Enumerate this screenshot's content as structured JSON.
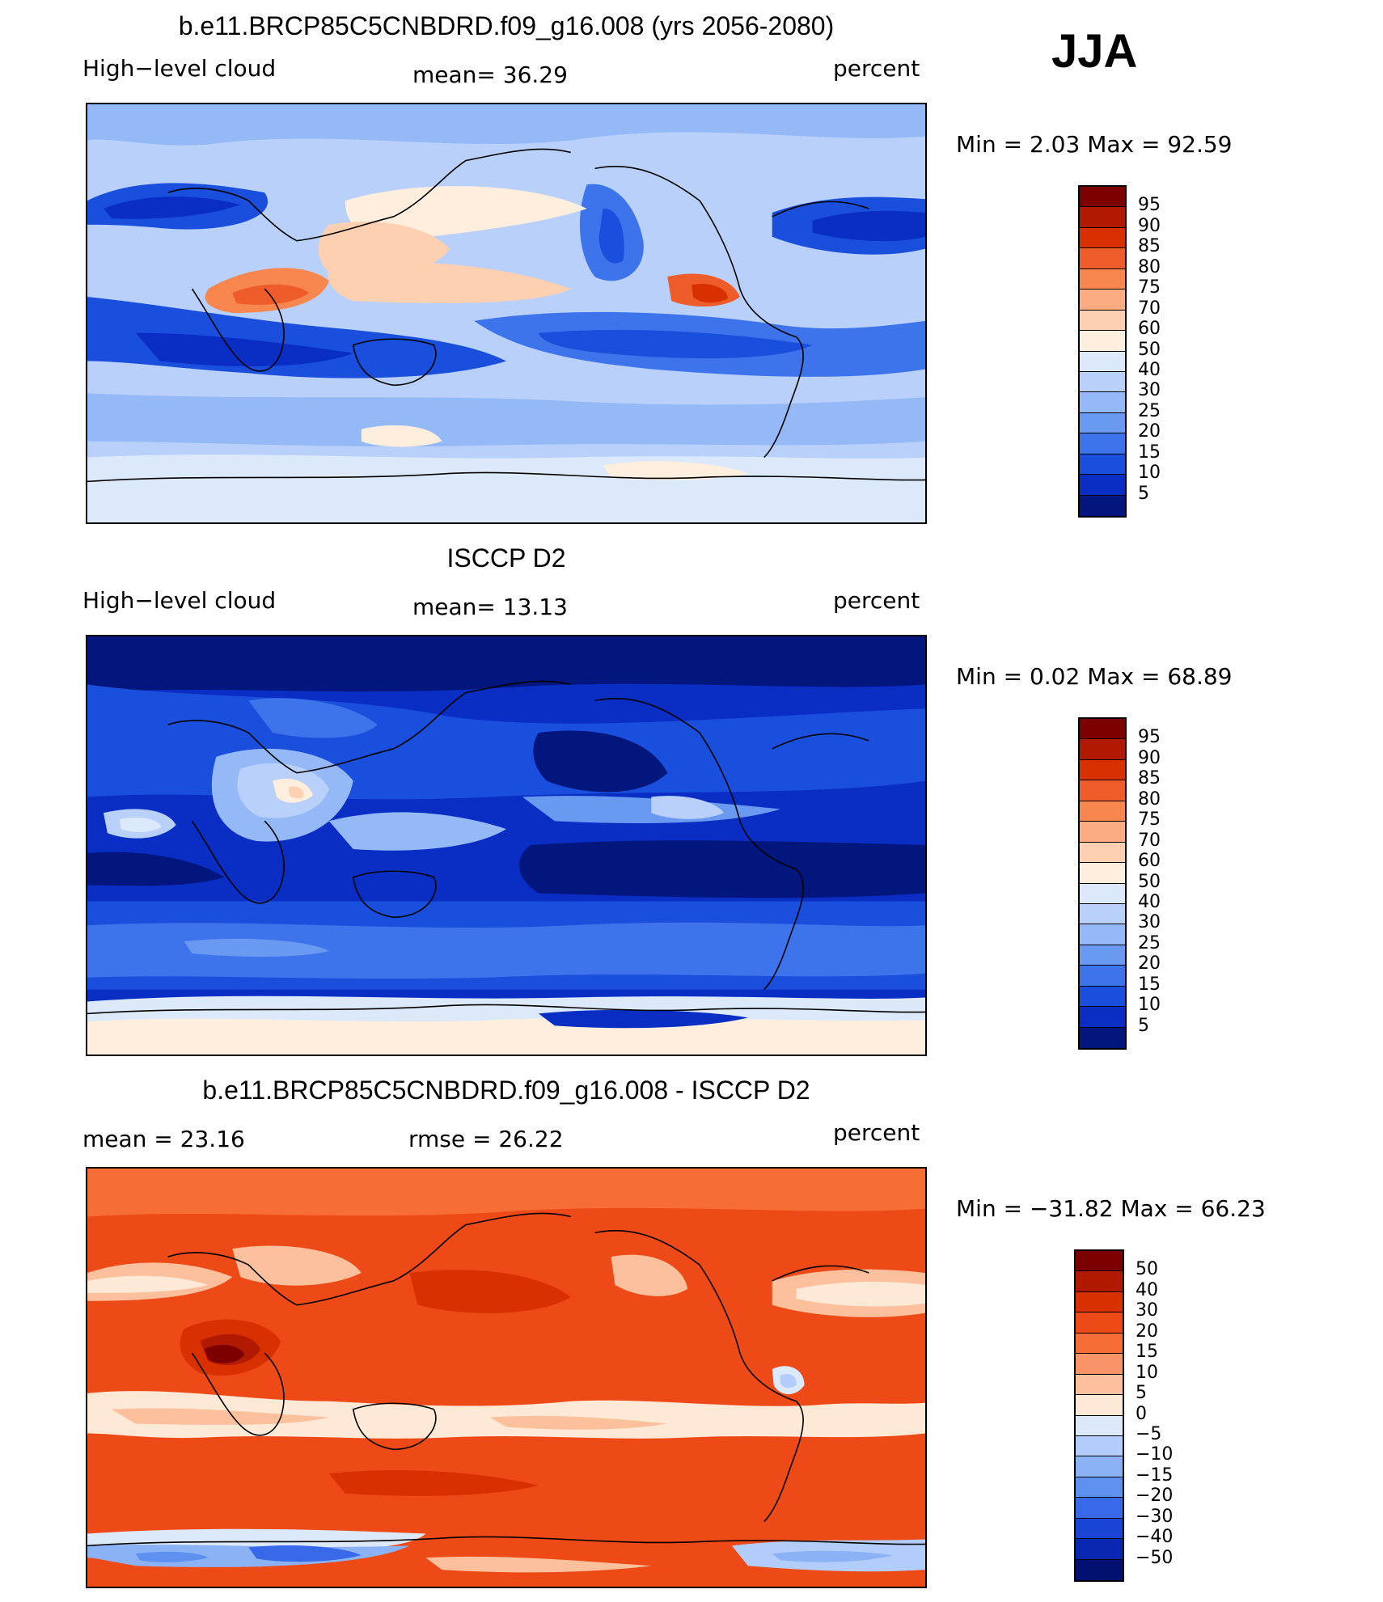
{
  "season": "JJA",
  "panels": [
    {
      "title": "b.e11.BRCP85C5CNBDRD.f09_g16.008 (yrs 2056-2080)",
      "left_label": "High−level cloud",
      "center_label": "mean=  36.29",
      "right_label": "percent",
      "minmax": "Min =    2.03  Max =   92.59",
      "levels": [
        "95",
        "90",
        "85",
        "80",
        "75",
        "70",
        "60",
        "50",
        "40",
        "30",
        "25",
        "20",
        "15",
        "10",
        "5"
      ],
      "colors": [
        "#7d0000",
        "#b21a00",
        "#d93000",
        "#ee5c2a",
        "#f8874f",
        "#fbac80",
        "#fdd0b2",
        "#fdeedd",
        "#dce9fb",
        "#b9d1fa",
        "#95b8f7",
        "#6a99f2",
        "#3e74eb",
        "#1a4fdd",
        "#0a2ec4",
        "#02167e"
      ]
    },
    {
      "title": "ISCCP D2",
      "left_label": "High−level cloud",
      "center_label": "mean=  13.13",
      "right_label": "percent",
      "minmax": "Min =    0.02  Max =   68.89",
      "levels": [
        "95",
        "90",
        "85",
        "80",
        "75",
        "70",
        "60",
        "50",
        "40",
        "30",
        "25",
        "20",
        "15",
        "10",
        "5"
      ],
      "colors": [
        "#7d0000",
        "#b21a00",
        "#d93000",
        "#ee5c2a",
        "#f8874f",
        "#fbac80",
        "#fdd0b2",
        "#fdeedd",
        "#dce9fb",
        "#b9d1fa",
        "#95b8f7",
        "#6a99f2",
        "#3e74eb",
        "#1a4fdd",
        "#0a2ec4",
        "#02167e"
      ]
    },
    {
      "title": "b.e11.BRCP85C5CNBDRD.f09_g16.008 - ISCCP D2",
      "left_label": "mean =   23.16",
      "center_label": "rmse =   26.22",
      "right_label": "percent",
      "minmax": "Min = −31.82  Max =   66.23",
      "levels": [
        "50",
        "40",
        "30",
        "20",
        "15",
        "10",
        "5",
        "0",
        "−5",
        "−10",
        "−15",
        "−20",
        "−30",
        "−40",
        "−50"
      ],
      "colors": [
        "#7d0000",
        "#b21a00",
        "#d93000",
        "#ee4a18",
        "#f66d35",
        "#f99468",
        "#fcc09c",
        "#fde9d6",
        "#dce9fb",
        "#b2cdf9",
        "#8cb2f6",
        "#5e90f0",
        "#3769e8",
        "#1a44d5",
        "#0926b1",
        "#021070"
      ]
    }
  ]
}
